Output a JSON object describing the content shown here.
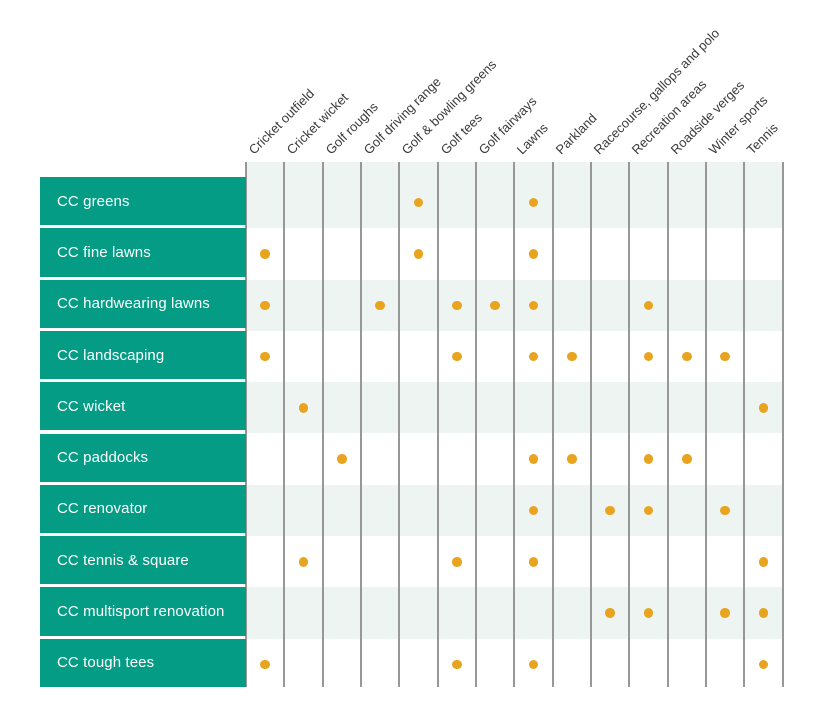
{
  "colors": {
    "teal": "#049C85",
    "row_band": "#EDF4F1",
    "grid_line": "#979797",
    "dot": "#E8A41E",
    "header_text": "#3A3A3A",
    "row_label_text": "#FFFFFF",
    "background": "#FFFFFF"
  },
  "chart_data": {
    "type": "table",
    "marker": "dot",
    "columns": [
      "Cricket outfield",
      "Cricket wicket",
      "Golf roughs",
      "Golf driving range",
      "Golf & bowling greens",
      "Golf tees",
      "Golf fairways",
      "Lawns",
      "Parkland",
      "Racecourse, gallops and polo",
      "Recreation areas",
      "Roadside verges",
      "Winter sports",
      "Tennis"
    ],
    "rows": [
      "CC greens",
      "CC fine lawns",
      "CC hardwearing lawns",
      "CC landscaping",
      "CC wicket",
      "CC paddocks",
      "CC renovator",
      "CC tennis & square",
      "CC multisport renovation",
      "CC tough tees"
    ],
    "values": [
      [
        0,
        0,
        0,
        0,
        1,
        0,
        0,
        1,
        0,
        0,
        0,
        0,
        0,
        0
      ],
      [
        1,
        0,
        0,
        0,
        1,
        0,
        0,
        1,
        0,
        0,
        0,
        0,
        0,
        0
      ],
      [
        1,
        0,
        0,
        1,
        0,
        1,
        1,
        1,
        0,
        0,
        1,
        0,
        0,
        0
      ],
      [
        1,
        0,
        0,
        0,
        0,
        1,
        0,
        1,
        1,
        0,
        1,
        1,
        1,
        0
      ],
      [
        0,
        1,
        0,
        0,
        0,
        0,
        0,
        0,
        0,
        0,
        0,
        0,
        0,
        1
      ],
      [
        0,
        0,
        1,
        0,
        0,
        0,
        0,
        1,
        1,
        0,
        1,
        1,
        0,
        0
      ],
      [
        0,
        0,
        0,
        0,
        0,
        0,
        0,
        1,
        0,
        1,
        1,
        0,
        1,
        0
      ],
      [
        0,
        1,
        0,
        0,
        0,
        1,
        0,
        1,
        0,
        0,
        0,
        0,
        0,
        1
      ],
      [
        0,
        0,
        0,
        0,
        0,
        0,
        0,
        0,
        0,
        1,
        1,
        0,
        1,
        1
      ],
      [
        1,
        0,
        0,
        0,
        0,
        1,
        0,
        1,
        0,
        0,
        0,
        0,
        0,
        1
      ]
    ]
  }
}
